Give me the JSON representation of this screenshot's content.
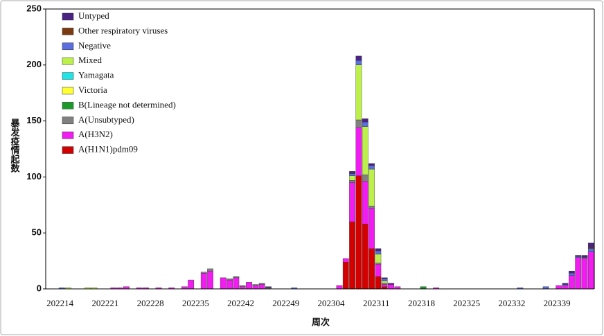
{
  "chart_data": {
    "type": "stacked-bar",
    "ylabel": "暴发疫情起数",
    "xlabel": "周次",
    "categories": [
      "202214",
      null,
      null,
      null,
      null,
      null,
      null,
      "202221",
      null,
      null,
      null,
      null,
      null,
      null,
      "202228",
      null,
      null,
      null,
      null,
      null,
      null,
      "202235",
      null,
      null,
      null,
      null,
      null,
      null,
      "202242",
      null,
      null,
      null,
      null,
      null,
      null,
      "202249",
      null,
      null,
      null,
      null,
      null,
      null,
      "202304",
      null,
      null,
      null,
      null,
      null,
      null,
      "202311",
      null,
      null,
      null,
      null,
      null,
      null,
      "202318",
      null,
      null,
      null,
      null,
      null,
      null,
      "202325",
      null,
      null,
      null,
      null,
      null,
      null,
      "202332",
      null,
      null,
      null,
      null,
      null,
      null,
      "202339",
      null,
      null,
      null,
      null,
      null,
      null,
      null
    ],
    "ylim": [
      0,
      250
    ],
    "yticks": [
      0,
      50,
      100,
      150,
      200,
      250
    ],
    "legend": "top-left",
    "series": [
      {
        "name": "Untyped",
        "color": "#4b2382",
        "values": [
          0,
          0,
          0,
          0,
          0,
          0,
          0,
          0,
          0,
          0,
          0,
          0,
          0,
          0,
          0,
          0,
          0,
          0,
          0,
          0,
          0,
          0,
          0,
          0,
          0,
          0,
          0,
          0,
          0,
          0,
          0,
          0,
          0,
          0,
          1,
          0,
          0,
          0,
          0,
          0,
          0,
          0,
          0,
          0,
          0,
          0,
          0,
          2,
          4,
          3,
          2,
          2,
          1,
          1,
          0,
          0,
          0,
          0,
          0,
          0,
          0,
          0,
          0,
          0,
          0,
          0,
          0,
          0,
          0,
          0,
          0,
          0,
          0,
          0,
          0,
          0,
          0,
          0,
          0,
          0,
          1,
          2,
          1,
          2,
          4
        ]
      },
      {
        "name": "Other respiratory viruses",
        "color": "#7b3a10",
        "values": [
          0,
          0,
          0,
          0,
          0,
          0,
          0,
          0,
          0,
          0,
          0,
          0,
          0,
          0,
          0,
          0,
          0,
          0,
          0,
          0,
          0,
          0,
          0,
          0,
          0,
          0,
          0,
          0,
          0,
          0,
          0,
          0,
          0,
          0,
          0,
          0,
          0,
          0,
          0,
          0,
          0,
          0,
          0,
          0,
          0,
          0,
          0,
          0,
          0,
          0,
          0,
          0,
          0,
          0,
          0,
          0,
          0,
          0,
          0,
          0,
          0,
          0,
          0,
          0,
          0,
          0,
          0,
          0,
          0,
          0,
          0,
          0,
          0,
          0,
          0,
          0,
          0,
          0,
          0,
          0,
          0,
          0,
          0,
          0,
          1
        ]
      },
      {
        "name": "Negative",
        "color": "#5b6ee1",
        "values": [
          0,
          0,
          1,
          0,
          0,
          0,
          0,
          0,
          0,
          0,
          0,
          0,
          0,
          0,
          0,
          0,
          0,
          0,
          0,
          0,
          0,
          0,
          0,
          0,
          0,
          0,
          0,
          0,
          0,
          0,
          0,
          0,
          0,
          0,
          0,
          0,
          0,
          0,
          1,
          0,
          0,
          0,
          0,
          0,
          0,
          0,
          0,
          2,
          4,
          4,
          3,
          3,
          2,
          0,
          0,
          0,
          0,
          0,
          0,
          0,
          0,
          0,
          0,
          0,
          0,
          0,
          0,
          0,
          0,
          0,
          0,
          0,
          0,
          1,
          0,
          0,
          0,
          2,
          0,
          0,
          1,
          2,
          1,
          0,
          3
        ]
      },
      {
        "name": "Mixed",
        "color": "#bdf04a",
        "values": [
          0,
          0,
          0,
          1,
          0,
          0,
          1,
          1,
          0,
          0,
          0,
          0,
          0,
          0,
          0,
          0,
          0,
          0,
          0,
          0,
          0,
          0,
          0,
          0,
          0,
          0,
          0,
          0,
          0,
          0,
          0,
          0,
          0,
          0,
          0,
          0,
          0,
          0,
          0,
          0,
          0,
          0,
          0,
          0,
          0,
          0,
          0,
          4,
          49,
          43,
          33,
          8,
          2,
          0,
          0,
          0,
          0,
          0,
          0,
          0,
          0,
          0,
          0,
          0,
          0,
          0,
          0,
          0,
          0,
          0,
          0,
          0,
          0,
          0,
          0,
          0,
          0,
          0,
          0,
          0,
          0,
          0,
          0,
          0,
          0
        ]
      },
      {
        "name": "Yamagata",
        "color": "#1ee6e6",
        "values": [
          0,
          0,
          0,
          0,
          0,
          0,
          0,
          0,
          0,
          0,
          0,
          0,
          0,
          0,
          0,
          0,
          0,
          0,
          0,
          0,
          0,
          0,
          0,
          0,
          0,
          0,
          0,
          0,
          0,
          0,
          0,
          0,
          0,
          0,
          0,
          0,
          0,
          0,
          0,
          0,
          0,
          0,
          0,
          0,
          0,
          0,
          0,
          0,
          0,
          0,
          0,
          0,
          0,
          0,
          0,
          0,
          0,
          0,
          0,
          0,
          0,
          0,
          0,
          0,
          0,
          0,
          0,
          0,
          0,
          0,
          0,
          0,
          0,
          0,
          0,
          0,
          0,
          0,
          0,
          0,
          0,
          0,
          0,
          0,
          0
        ]
      },
      {
        "name": "Victoria",
        "color": "#ffff33",
        "values": [
          0,
          0,
          0,
          0,
          0,
          0,
          0,
          0,
          0,
          0,
          0,
          0,
          0,
          0,
          0,
          0,
          0,
          0,
          0,
          0,
          0,
          0,
          0,
          0,
          0,
          0,
          0,
          0,
          0,
          0,
          0,
          0,
          0,
          0,
          0,
          0,
          0,
          0,
          0,
          0,
          0,
          0,
          0,
          0,
          0,
          0,
          0,
          0,
          0,
          0,
          0,
          0,
          0,
          0,
          0,
          0,
          0,
          0,
          0,
          0,
          0,
          0,
          0,
          0,
          0,
          0,
          0,
          0,
          0,
          0,
          0,
          0,
          0,
          0,
          0,
          0,
          0,
          0,
          0,
          0,
          0,
          0,
          0,
          0,
          0
        ]
      },
      {
        "name": "B(Lineage not determined)",
        "color": "#1a9a2a",
        "values": [
          0,
          0,
          0,
          0,
          0,
          0,
          0,
          0,
          0,
          0,
          0,
          0,
          0,
          0,
          0,
          0,
          0,
          0,
          0,
          0,
          0,
          0,
          0,
          0,
          0,
          0,
          0,
          0,
          0,
          0,
          0,
          0,
          0,
          0,
          0,
          0,
          0,
          0,
          0,
          0,
          0,
          0,
          0,
          0,
          0,
          0,
          0,
          0,
          0,
          0,
          0,
          0,
          0,
          0,
          0,
          0,
          0,
          0,
          2,
          0,
          0,
          0,
          0,
          0,
          0,
          0,
          0,
          0,
          0,
          0,
          0,
          0,
          0,
          0,
          0,
          0,
          0,
          0,
          0,
          0,
          0,
          0,
          0,
          0,
          0
        ]
      },
      {
        "name": "A(Unsubtyped)",
        "color": "#808080",
        "values": [
          0,
          0,
          0,
          0,
          0,
          0,
          0,
          0,
          0,
          0,
          0,
          0,
          0,
          0,
          0,
          0,
          0,
          0,
          0,
          0,
          0,
          0,
          0,
          0,
          1,
          2,
          0,
          0,
          1,
          1,
          1,
          0,
          1,
          1,
          1,
          0,
          0,
          0,
          0,
          0,
          0,
          0,
          0,
          0,
          0,
          0,
          0,
          2,
          7,
          6,
          2,
          1,
          1,
          0,
          0,
          0,
          0,
          0,
          0,
          0,
          0,
          0,
          0,
          0,
          0,
          0,
          0,
          0,
          0,
          0,
          0,
          0,
          0,
          0,
          0,
          0,
          0,
          0,
          0,
          0,
          0,
          0,
          0,
          1,
          0
        ]
      },
      {
        "name": "A(H3N2)",
        "color": "#f01cf0",
        "values": [
          0,
          0,
          0,
          0,
          0,
          0,
          0,
          0,
          0,
          0,
          1,
          1,
          2,
          0,
          1,
          1,
          0,
          1,
          0,
          1,
          0,
          2,
          8,
          0,
          14,
          16,
          0,
          10,
          8,
          10,
          2,
          6,
          3,
          4,
          0,
          0,
          0,
          0,
          0,
          0,
          0,
          0,
          0,
          0,
          0,
          3,
          3,
          35,
          43,
          38,
          36,
          11,
          2,
          4,
          2,
          0,
          0,
          0,
          0,
          0,
          1,
          0,
          0,
          0,
          0,
          0,
          0,
          0,
          0,
          0,
          0,
          0,
          0,
          0,
          0,
          0,
          0,
          0,
          0,
          3,
          3,
          12,
          28,
          27,
          33
        ]
      },
      {
        "name": "A(H1N1)pdm09",
        "color": "#d40000",
        "values": [
          0,
          0,
          0,
          0,
          0,
          0,
          0,
          0,
          0,
          0,
          0,
          0,
          0,
          0,
          0,
          0,
          0,
          0,
          0,
          0,
          0,
          0,
          0,
          0,
          0,
          0,
          0,
          0,
          0,
          0,
          0,
          0,
          0,
          0,
          0,
          0,
          0,
          0,
          0,
          0,
          0,
          0,
          0,
          0,
          0,
          0,
          24,
          60,
          101,
          58,
          36,
          11,
          2,
          0,
          0,
          0,
          0,
          0,
          0,
          0,
          0,
          0,
          0,
          0,
          0,
          0,
          0,
          0,
          0,
          0,
          0,
          0,
          0,
          0,
          0,
          0,
          0,
          0,
          0,
          0,
          0,
          0,
          0,
          0,
          0
        ]
      }
    ]
  }
}
